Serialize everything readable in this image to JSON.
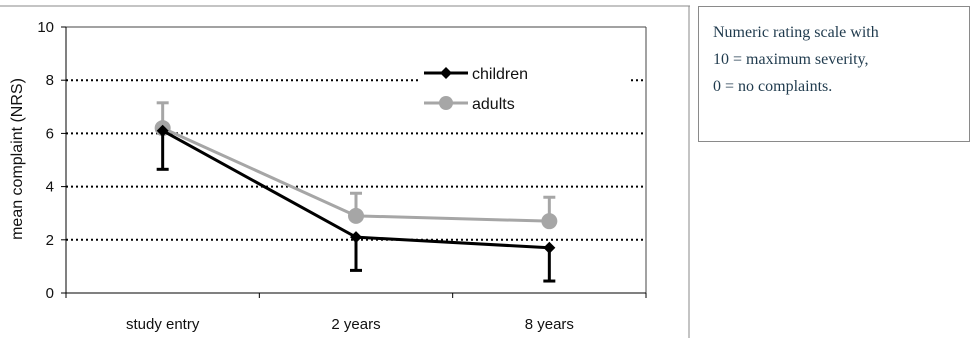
{
  "chart_data": {
    "type": "line",
    "categories": [
      "study entry",
      "2 years",
      "8 years"
    ],
    "ylabel": "mean complaint (NRS)",
    "xlabel": "",
    "ylim": [
      0,
      10
    ],
    "yticks": [
      0,
      2,
      4,
      6,
      8,
      10
    ],
    "grid": "horizontal dotted",
    "legend_position": "top-right",
    "series": [
      {
        "name": "children",
        "values": [
          6.1,
          2.1,
          1.7
        ],
        "err_low": [
          1.45,
          1.25,
          1.25
        ],
        "err_high": [
          0,
          0,
          0
        ],
        "color": "#000000",
        "marker": "diamond",
        "error_direction": "down"
      },
      {
        "name": "adults",
        "values": [
          6.2,
          2.9,
          2.7
        ],
        "err_low": [
          0,
          0,
          0
        ],
        "err_high": [
          0.95,
          0.85,
          0.9
        ],
        "color": "#a6a6a6",
        "marker": "circle",
        "error_direction": "up"
      }
    ]
  },
  "note": {
    "lines": [
      "Numeric rating scale with",
      "10 = maximum severity,",
      "0 = no complaints."
    ]
  }
}
